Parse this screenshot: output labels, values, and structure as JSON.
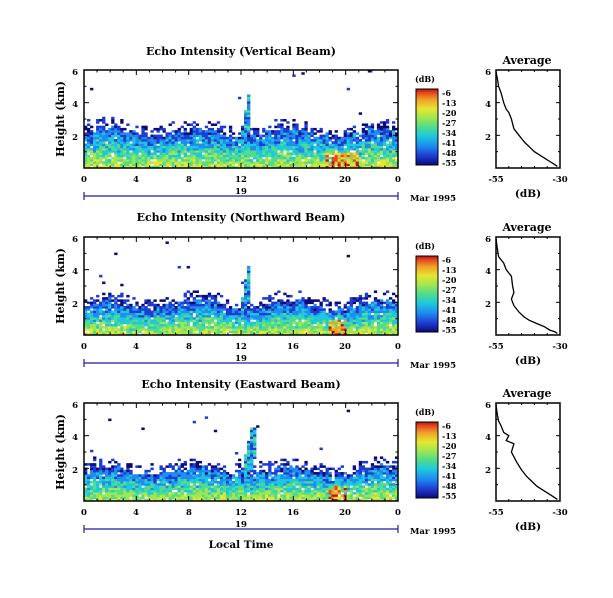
{
  "chart_data": [
    {
      "type": "heatmap",
      "title": "Echo Intensity (Vertical Beam)",
      "ylabel": "Height (km)",
      "y_ticks": [
        "6",
        "4",
        "2"
      ],
      "ylim": [
        0,
        6
      ],
      "x_ticks": [
        "0",
        "4",
        "8",
        "12",
        "16",
        "20",
        "0"
      ],
      "xlim": [
        0,
        24
      ],
      "day_label": "19",
      "date_label": "Mar 1995",
      "colorbar": {
        "unit": "(dB)",
        "ticks": [
          "-6",
          "-13",
          "-20",
          "-27",
          "-34",
          "-41",
          "-48",
          "-55"
        ]
      },
      "features": {
        "cloud_top_km": 2.2,
        "plume": {
          "t_start": 11.9,
          "t_end": 12.8,
          "top_km": 4.5
        },
        "hot_patch_t": [
          18.5,
          21
        ]
      }
    },
    {
      "type": "heatmap",
      "title": "Echo Intensity (Northward Beam)",
      "ylabel": "Height (km)",
      "y_ticks": [
        "6",
        "4",
        "2"
      ],
      "ylim": [
        0,
        6
      ],
      "x_ticks": [
        "0",
        "4",
        "8",
        "12",
        "16",
        "20",
        "0"
      ],
      "xlim": [
        0,
        24
      ],
      "day_label": "19",
      "date_label": "Mar 1995",
      "colorbar": {
        "unit": "(dB)",
        "ticks": [
          "-6",
          "-13",
          "-20",
          "-27",
          "-34",
          "-41",
          "-48",
          "-55"
        ]
      },
      "features": {
        "cloud_top_km": 1.9,
        "plume": {
          "t_start": 11.9,
          "t_end": 12.8,
          "top_km": 4.2
        },
        "hot_patch_t": [
          18.8,
          20
        ]
      }
    },
    {
      "type": "heatmap",
      "title": "Echo Intensity (Eastward Beam)",
      "ylabel": "Height (km)",
      "y_ticks": [
        "6",
        "4",
        "2"
      ],
      "ylim": [
        0,
        6
      ],
      "x_ticks": [
        "0",
        "4",
        "8",
        "12",
        "16",
        "20",
        "0"
      ],
      "xlim": [
        0,
        24
      ],
      "day_label": "19",
      "date_label": "Mar 1995",
      "xlabel": "Local Time",
      "colorbar": {
        "unit": "(dB)",
        "ticks": [
          "-6",
          "-13",
          "-20",
          "-27",
          "-34",
          "-41",
          "-48",
          "-55"
        ]
      },
      "features": {
        "cloud_top_km": 1.9,
        "plume": {
          "t_start": 11.9,
          "t_end": 13.2,
          "top_km": 4.5
        },
        "hot_patch_t": [
          18.8,
          20
        ]
      }
    },
    {
      "type": "line",
      "title": "Average",
      "xlabel": "(dB)",
      "x_ticks": [
        "-55",
        "-30"
      ],
      "y_ticks": [
        "6",
        "4",
        "2"
      ],
      "xlim": [
        -55,
        -30
      ],
      "ylim": [
        0,
        6
      ],
      "x": [
        -55,
        -54.5,
        -54,
        -53,
        -52,
        -51,
        -50,
        -49,
        -48,
        -46,
        -44,
        -42,
        -40,
        -38,
        -36,
        -34,
        -32,
        -31
      ],
      "y": [
        5.9,
        5.5,
        5.0,
        4.6,
        4.0,
        3.6,
        3.4,
        3.0,
        2.4,
        2.0,
        1.6,
        1.3,
        1.0,
        0.8,
        0.6,
        0.4,
        0.2,
        0.1
      ]
    },
    {
      "type": "line",
      "title": "Average",
      "xlabel": "(dB)",
      "x_ticks": [
        "-55",
        "-30"
      ],
      "y_ticks": [
        "6",
        "4",
        "2"
      ],
      "xlim": [
        -55,
        -30
      ],
      "ylim": [
        0,
        6
      ],
      "x": [
        -55,
        -54.5,
        -54,
        -52,
        -51,
        -49,
        -48.5,
        -48,
        -49,
        -48,
        -46,
        -44,
        -42,
        -39,
        -36,
        -34,
        -32,
        -31
      ],
      "y": [
        5.9,
        5.3,
        4.8,
        4.4,
        4.0,
        3.6,
        3.0,
        2.6,
        2.2,
        1.8,
        1.4,
        1.1,
        0.9,
        0.7,
        0.5,
        0.3,
        0.2,
        0.1
      ]
    },
    {
      "type": "line",
      "title": "Average",
      "xlabel": "(dB)",
      "x_ticks": [
        "-55",
        "-30"
      ],
      "y_ticks": [
        "6",
        "4",
        "2"
      ],
      "xlim": [
        -55,
        -30
      ],
      "ylim": [
        0,
        6
      ],
      "x": [
        -55,
        -54.5,
        -54,
        -53,
        -52,
        -50,
        -51,
        -48,
        -49,
        -47,
        -45,
        -43,
        -41,
        -39,
        -37,
        -35,
        -33,
        -31
      ],
      "y": [
        5.9,
        5.3,
        4.9,
        4.6,
        4.2,
        4.0,
        3.7,
        3.5,
        3.0,
        2.4,
        1.9,
        1.5,
        1.2,
        0.9,
        0.7,
        0.5,
        0.3,
        0.1
      ]
    }
  ],
  "colors": {
    "colormap": [
      "#0a0a78",
      "#1e3cd2",
      "#1e8cf0",
      "#1ec8dc",
      "#50dc8c",
      "#a0e650",
      "#e6e632",
      "#f0a028",
      "#e6461e",
      "#b41414"
    ],
    "axis": "#000000",
    "time_bar": "#1e1ea0"
  }
}
